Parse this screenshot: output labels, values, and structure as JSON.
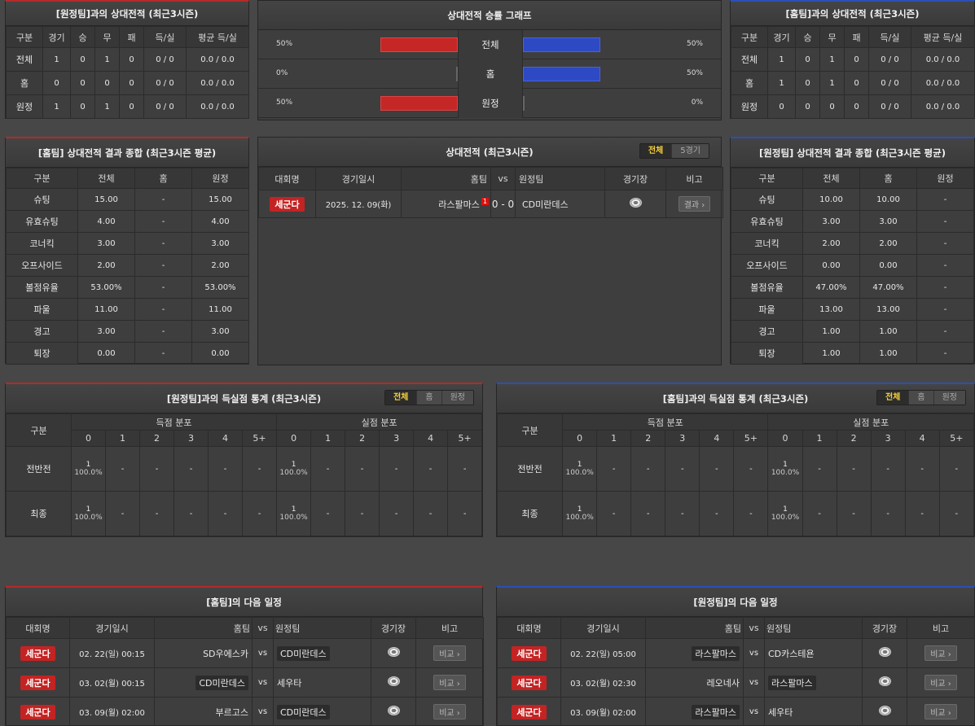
{
  "h2h_away": {
    "title": "[원정팀]과의 상대전적 (최근3시즌)",
    "headers": [
      "구분",
      "경기",
      "승",
      "무",
      "패",
      "득/실",
      "평균 득/실"
    ],
    "rows": [
      [
        "전체",
        "1",
        "0",
        "1",
        "0",
        "0 / 0",
        "0.0 / 0.0"
      ],
      [
        "홈",
        "0",
        "0",
        "0",
        "0",
        "0 / 0",
        "0.0 / 0.0"
      ],
      [
        "원정",
        "1",
        "0",
        "1",
        "0",
        "0 / 0",
        "0.0 / 0.0"
      ]
    ]
  },
  "h2h_graph": {
    "title": "상대전적 승률 그래프",
    "rows": [
      {
        "label": "전체",
        "left_pct": "50%",
        "right_pct": "50%",
        "left_val": 0.5,
        "right_val": 0.5
      },
      {
        "label": "홈",
        "left_pct": "0%",
        "right_pct": "50%",
        "left_val": 0.0,
        "right_val": 0.5
      },
      {
        "label": "원정",
        "left_pct": "50%",
        "right_pct": "0%",
        "left_val": 0.5,
        "right_val": 0.0
      }
    ]
  },
  "h2h_home": {
    "title": "[홈팀]과의 상대전적 (최근3시즌)",
    "headers": [
      "구분",
      "경기",
      "승",
      "무",
      "패",
      "득/실",
      "평균 득/실"
    ],
    "rows": [
      [
        "전체",
        "1",
        "0",
        "1",
        "0",
        "0 / 0",
        "0.0 / 0.0"
      ],
      [
        "홈",
        "1",
        "0",
        "1",
        "0",
        "0 / 0",
        "0.0 / 0.0"
      ],
      [
        "원정",
        "0",
        "0",
        "0",
        "0",
        "0 / 0",
        "0.0 / 0.0"
      ]
    ]
  },
  "home_summary": {
    "title": "[홈팀] 상대전적 결과 종합 (최근3시즌 평균)",
    "headers": [
      "구분",
      "전체",
      "홈",
      "원정"
    ],
    "rows": [
      [
        "슈팅",
        "15.00",
        "-",
        "15.00"
      ],
      [
        "유효슈팅",
        "4.00",
        "-",
        "4.00"
      ],
      [
        "코너킥",
        "3.00",
        "-",
        "3.00"
      ],
      [
        "오프사이드",
        "2.00",
        "-",
        "2.00"
      ],
      [
        "볼점유율",
        "53.00%",
        "-",
        "53.00%"
      ],
      [
        "파울",
        "11.00",
        "-",
        "11.00"
      ],
      [
        "경고",
        "3.00",
        "-",
        "3.00"
      ],
      [
        "퇴장",
        "0.00",
        "-",
        "0.00"
      ]
    ]
  },
  "h2h_matches": {
    "title": "상대전적 (최근3시즌)",
    "tabs": [
      "전체",
      "5경기"
    ],
    "headers": {
      "comp": "대회명",
      "date": "경기일시",
      "home": "홈팀",
      "vs": "vs",
      "away": "원정팀",
      "stadium": "경기장",
      "note": "비고"
    },
    "match": {
      "comp": "세군다",
      "date": "2025. 12. 09(화)",
      "home": "라스팔마스",
      "red_card": "1",
      "score": "0 - 0",
      "away": "CD미란데스",
      "button": "결과 ›"
    }
  },
  "away_summary": {
    "title": "[원정팀] 상대전적 결과 종합 (최근3시즌 평균)",
    "headers": [
      "구분",
      "전체",
      "홈",
      "원정"
    ],
    "rows": [
      [
        "슈팅",
        "10.00",
        "10.00",
        "-"
      ],
      [
        "유효슈팅",
        "3.00",
        "3.00",
        "-"
      ],
      [
        "코너킥",
        "2.00",
        "2.00",
        "-"
      ],
      [
        "오프사이드",
        "0.00",
        "0.00",
        "-"
      ],
      [
        "볼점유율",
        "47.00%",
        "47.00%",
        "-"
      ],
      [
        "파울",
        "13.00",
        "13.00",
        "-"
      ],
      [
        "경고",
        "1.00",
        "1.00",
        "-"
      ],
      [
        "퇴장",
        "1.00",
        "1.00",
        "-"
      ]
    ]
  },
  "goals_left": {
    "title": "[원정팀]과의 득실점 통계 (최근3시즌)",
    "tabs": [
      "전체",
      "홈",
      "원정"
    ],
    "col_label": "구분",
    "scored_label": "득점 분포",
    "conceded_label": "실점 분포",
    "buckets": [
      "0",
      "1",
      "2",
      "3",
      "4",
      "5+"
    ],
    "rows": [
      {
        "label": "전반전",
        "scored": [
          [
            "1",
            "100.0%"
          ],
          "-",
          "-",
          "-",
          "-",
          "-"
        ],
        "conceded": [
          [
            "1",
            "100.0%"
          ],
          "-",
          "-",
          "-",
          "-",
          "-"
        ]
      },
      {
        "label": "최종",
        "scored": [
          [
            "1",
            "100.0%"
          ],
          "-",
          "-",
          "-",
          "-",
          "-"
        ],
        "conceded": [
          [
            "1",
            "100.0%"
          ],
          "-",
          "-",
          "-",
          "-",
          "-"
        ]
      }
    ]
  },
  "goals_right": {
    "title": "[홈팀]과의 득실점 통계 (최근3시즌)",
    "tabs": [
      "전체",
      "홈",
      "원정"
    ],
    "col_label": "구분",
    "scored_label": "득점 분포",
    "conceded_label": "실점 분포",
    "buckets": [
      "0",
      "1",
      "2",
      "3",
      "4",
      "5+"
    ],
    "rows": [
      {
        "label": "전반전",
        "scored": [
          [
            "1",
            "100.0%"
          ],
          "-",
          "-",
          "-",
          "-",
          "-"
        ],
        "conceded": [
          [
            "1",
            "100.0%"
          ],
          "-",
          "-",
          "-",
          "-",
          "-"
        ]
      },
      {
        "label": "최종",
        "scored": [
          [
            "1",
            "100.0%"
          ],
          "-",
          "-",
          "-",
          "-",
          "-"
        ],
        "conceded": [
          [
            "1",
            "100.0%"
          ],
          "-",
          "-",
          "-",
          "-",
          "-"
        ]
      }
    ]
  },
  "next_home": {
    "title": "[홈팀]의 다음 일정",
    "headers": {
      "comp": "대회명",
      "date": "경기일시",
      "home": "홈팀",
      "vs": "vs",
      "away": "원정팀",
      "stadium": "경기장",
      "note": "비고"
    },
    "rows": [
      {
        "comp": "세군다",
        "date": "02. 22(일) 00:15",
        "home": "SD우에스카",
        "away": "CD미란데스",
        "hl": "away",
        "button": "비교 ›"
      },
      {
        "comp": "세군다",
        "date": "03. 02(월) 00:15",
        "home": "CD미란데스",
        "away": "세우타",
        "hl": "home",
        "button": "비교 ›"
      },
      {
        "comp": "세군다",
        "date": "03. 09(월) 02:00",
        "home": "부르고스",
        "away": "CD미란데스",
        "hl": "away",
        "button": "비교 ›"
      }
    ]
  },
  "next_away": {
    "title": "[원정팀]의 다음 일정",
    "headers": {
      "comp": "대회명",
      "date": "경기일시",
      "home": "홈팀",
      "vs": "vs",
      "away": "원정팀",
      "stadium": "경기장",
      "note": "비고"
    },
    "rows": [
      {
        "comp": "세군다",
        "date": "02. 22(일) 05:00",
        "home": "라스팔마스",
        "away": "CD카스테욘",
        "hl": "home",
        "button": "비교 ›"
      },
      {
        "comp": "세군다",
        "date": "03. 02(월) 02:30",
        "home": "레오네사",
        "away": "라스팔마스",
        "hl": "away",
        "button": "비교 ›"
      },
      {
        "comp": "세군다",
        "date": "03. 09(월) 02:00",
        "home": "라스팔마스",
        "away": "세우타",
        "hl": "home",
        "button": "비교 ›"
      }
    ]
  }
}
